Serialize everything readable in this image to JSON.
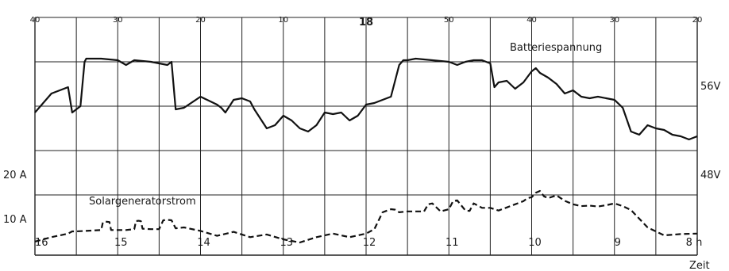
{
  "chart_data": {
    "type": "line",
    "top_tick_labels": [
      "40",
      "30",
      "20",
      "10",
      "18",
      "50",
      "40",
      "30",
      "20"
    ],
    "hour_labels": [
      "16",
      "15",
      "14",
      "13",
      "12",
      "11",
      "10",
      "9",
      "8 h"
    ],
    "xlabel": "Zeit",
    "right_axis_labels": [
      "56V",
      "48V"
    ],
    "left_axis_labels": [
      "20 A",
      "10 A"
    ],
    "x_range_hours": [
      16,
      8
    ],
    "voltage_range_V": [
      44,
      58
    ],
    "current_range_A": [
      0,
      20
    ],
    "grid": true,
    "series": [
      {
        "name": "Batteriespannung",
        "unit": "V",
        "style": "solid",
        "x": [
          16.0,
          15.8,
          15.6,
          15.55,
          15.5,
          15.45,
          15.4,
          15.38,
          15.2,
          15.0,
          14.9,
          14.8,
          14.6,
          14.4,
          14.35,
          14.3,
          14.2,
          14.0,
          13.8,
          13.75,
          13.7,
          13.6,
          13.5,
          13.4,
          13.35,
          13.3,
          13.2,
          13.1,
          13.0,
          12.9,
          12.8,
          12.7,
          12.6,
          12.5,
          12.4,
          12.3,
          12.2,
          12.1,
          12.0,
          11.9,
          11.8,
          11.7,
          11.6,
          11.55,
          11.5,
          11.4,
          11.2,
          11.0,
          10.9,
          10.8,
          10.7,
          10.6,
          10.5,
          10.45,
          10.4,
          10.3,
          10.2,
          10.1,
          10.0,
          9.95,
          9.9,
          9.8,
          9.7,
          9.6,
          9.5,
          9.4,
          9.3,
          9.2,
          9.1,
          9.0,
          8.9,
          8.8,
          8.7,
          8.6,
          8.5,
          8.4,
          8.3,
          8.2,
          8.1,
          8.0
        ],
        "values": [
          52.0,
          53.2,
          53.6,
          52.0,
          52.2,
          52.4,
          55.2,
          55.4,
          55.4,
          55.3,
          55.0,
          55.3,
          55.2,
          55.0,
          55.2,
          52.2,
          52.3,
          53.0,
          52.5,
          52.3,
          52.0,
          52.8,
          52.9,
          52.7,
          52.2,
          51.8,
          51.0,
          51.2,
          51.8,
          51.5,
          51.0,
          50.8,
          51.2,
          52.0,
          51.9,
          52.0,
          51.5,
          51.8,
          52.5,
          52.6,
          52.8,
          53.0,
          55.0,
          55.3,
          55.3,
          55.4,
          55.3,
          55.2,
          55.0,
          55.2,
          55.3,
          55.3,
          55.1,
          53.6,
          53.9,
          54.0,
          53.5,
          53.9,
          54.6,
          54.8,
          54.5,
          54.2,
          53.8,
          53.2,
          53.4,
          53.0,
          52.9,
          53.0,
          52.9,
          52.8,
          52.3,
          50.8,
          50.6,
          51.2,
          51.0,
          50.9,
          50.6,
          50.5,
          50.3,
          50.5
        ]
      },
      {
        "name": "Solargeneratorstrom",
        "unit": "A",
        "style": "dashed",
        "x": [
          16.0,
          15.8,
          15.6,
          15.55,
          15.5,
          15.2,
          15.18,
          15.15,
          15.1,
          15.08,
          15.0,
          14.9,
          14.8,
          14.78,
          14.75,
          14.72,
          14.7,
          14.6,
          14.5,
          14.45,
          14.4,
          14.35,
          14.3,
          14.2,
          14.0,
          13.8,
          13.6,
          13.4,
          13.2,
          13.0,
          12.8,
          12.6,
          12.4,
          12.2,
          12.0,
          11.9,
          11.8,
          11.7,
          11.65,
          11.6,
          11.5,
          11.3,
          11.25,
          11.2,
          11.1,
          11.0,
          10.95,
          10.9,
          10.8,
          10.75,
          10.7,
          10.6,
          10.5,
          10.4,
          10.3,
          10.2,
          10.1,
          10.05,
          10.0,
          9.95,
          9.9,
          9.85,
          9.8,
          9.7,
          9.6,
          9.5,
          9.4,
          9.3,
          9.2,
          9.1,
          9.0,
          8.9,
          8.8,
          8.6,
          8.4,
          8.2,
          8.0
        ],
        "values": [
          0.2,
          1.2,
          2.0,
          2.5,
          2.5,
          2.8,
          4.5,
          4.7,
          4.6,
          2.8,
          2.8,
          2.8,
          3.0,
          4.8,
          4.9,
          4.8,
          3.1,
          3.0,
          3.0,
          5.0,
          5.1,
          5.0,
          3.2,
          3.4,
          2.6,
          1.5,
          2.4,
          1.2,
          1.8,
          0.7,
          0.0,
          1.2,
          2.0,
          1.2,
          2.0,
          3.0,
          6.8,
          7.5,
          7.4,
          6.8,
          7.0,
          7.0,
          8.6,
          8.8,
          7.0,
          7.5,
          9.3,
          9.5,
          7.2,
          7.1,
          8.8,
          7.8,
          7.8,
          7.2,
          7.9,
          8.6,
          9.3,
          10.0,
          10.2,
          11.2,
          11.6,
          10.4,
          10.0,
          10.6,
          9.4,
          8.6,
          8.2,
          8.3,
          8.1,
          8.4,
          8.8,
          8.2,
          7.3,
          3.4,
          1.6,
          1.9,
          2.0
        ]
      }
    ]
  }
}
